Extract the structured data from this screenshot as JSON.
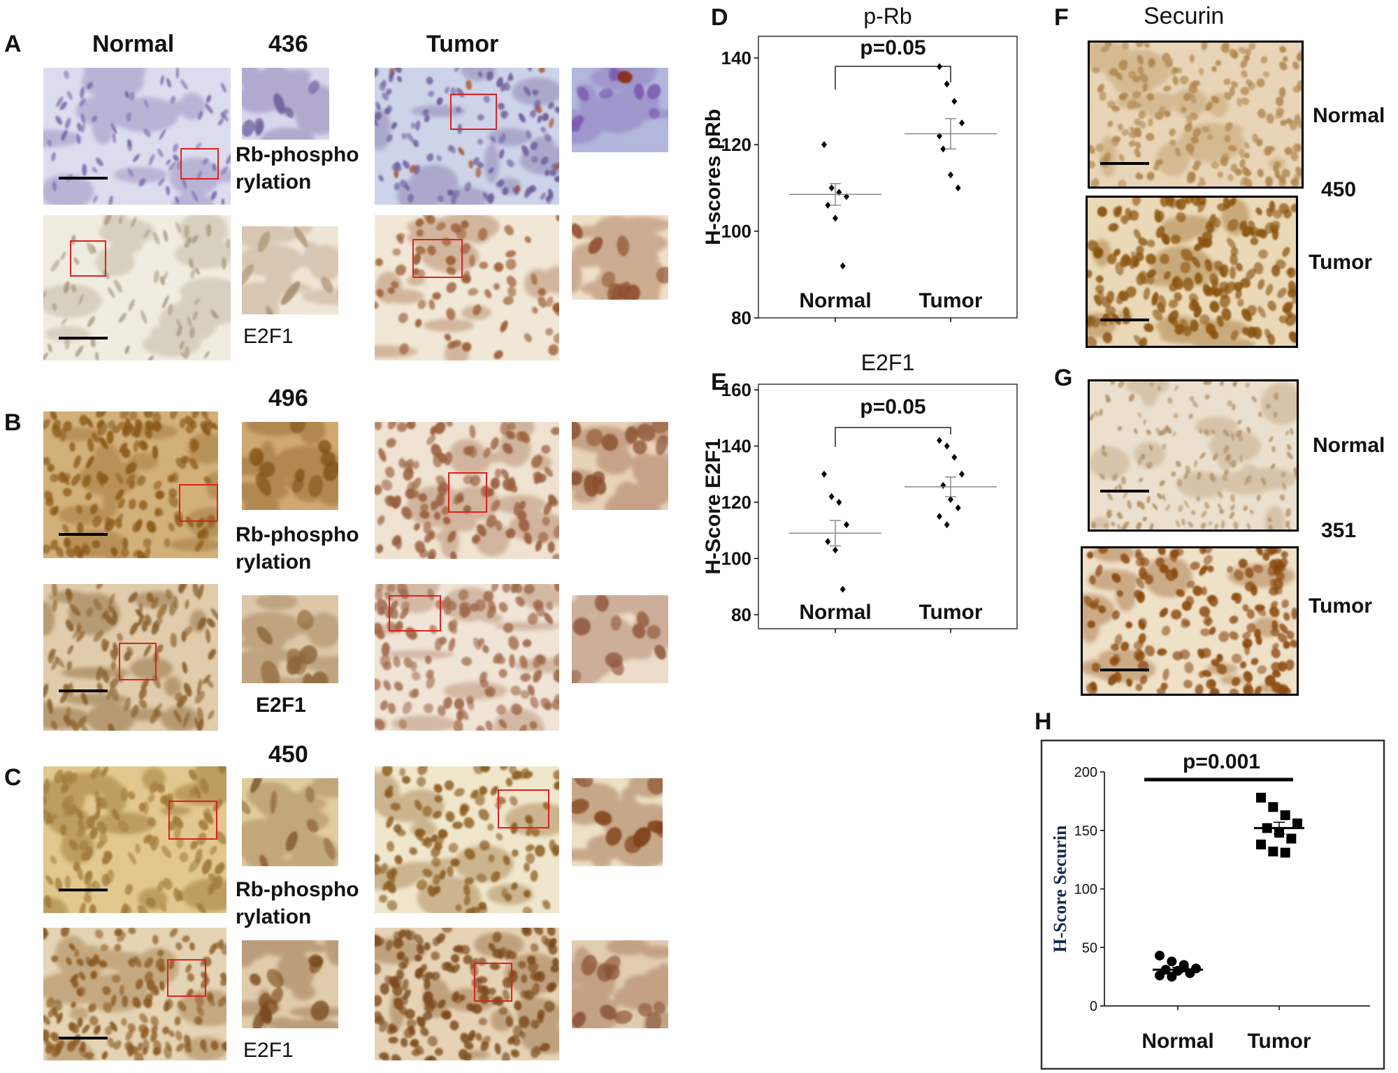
{
  "figure": {
    "panel_labels": {
      "A": "A",
      "B": "B",
      "C": "C",
      "D": "D",
      "E": "E",
      "F": "F",
      "G": "G",
      "H": "H"
    },
    "column_headers": {
      "normal": "Normal",
      "tumor": "Tumor"
    },
    "case_ids": {
      "A": "436",
      "B": "496",
      "C": "450",
      "F": "450",
      "G": "351"
    },
    "stain_labels": {
      "rb_line1": "Rb-phospho",
      "rb_line2": "rylation",
      "e2f1": "E2F1"
    },
    "F": {
      "title": "Securin",
      "normal": "Normal",
      "tumor": "Tumor"
    },
    "G": {
      "normal": "Normal",
      "tumor": "Tumor"
    }
  },
  "chart_data": [
    {
      "panel": "D",
      "type": "scatter",
      "title": "p-Rb",
      "ylabel": "H-scores pRb",
      "categories": [
        "Normal",
        "Tumor"
      ],
      "yticks": [
        "80",
        "100",
        "120",
        "140"
      ],
      "ylim": [
        80,
        145
      ],
      "annotation": "p=0.05",
      "series": [
        {
          "values": [
            120,
            110,
            109,
            108,
            106,
            103,
            92
          ],
          "mean": 108.5,
          "sem": 2.5
        },
        {
          "values": [
            138,
            134,
            130,
            125,
            119,
            113,
            110,
            122
          ],
          "mean": 122.5,
          "sem": 3.5
        }
      ]
    },
    {
      "panel": "E",
      "type": "scatter",
      "title": "E2F1",
      "ylabel": "H-Score E2F1",
      "categories": [
        "Normal",
        "Tumor"
      ],
      "yticks": [
        "80",
        "100",
        "120",
        "140",
        "160"
      ],
      "ylim": [
        75,
        162
      ],
      "annotation": "p=0.05",
      "series": [
        {
          "values": [
            130,
            122,
            120,
            112,
            106,
            103,
            89
          ],
          "mean": 109,
          "sem": 4.5
        },
        {
          "values": [
            142,
            140,
            136,
            130,
            126,
            121,
            118,
            115,
            112
          ],
          "mean": 125.5,
          "sem": 3.5
        }
      ]
    },
    {
      "panel": "H",
      "type": "scatter",
      "title": "",
      "ylabel": "H-Score Securin",
      "categories": [
        "Normal",
        "Tumor"
      ],
      "yticks": [
        "0",
        "50",
        "100",
        "150",
        "200"
      ],
      "ylim": [
        0,
        200
      ],
      "annotation": "p=0.001",
      "series": [
        {
          "values": [
            43,
            38,
            35,
            32,
            31,
            30,
            28,
            26,
            25,
            33
          ],
          "mean": 31,
          "sem": 2
        },
        {
          "values": [
            178,
            170,
            163,
            156,
            152,
            148,
            143,
            138,
            132,
            131
          ],
          "mean": 152,
          "sem": 5
        }
      ]
    }
  ]
}
